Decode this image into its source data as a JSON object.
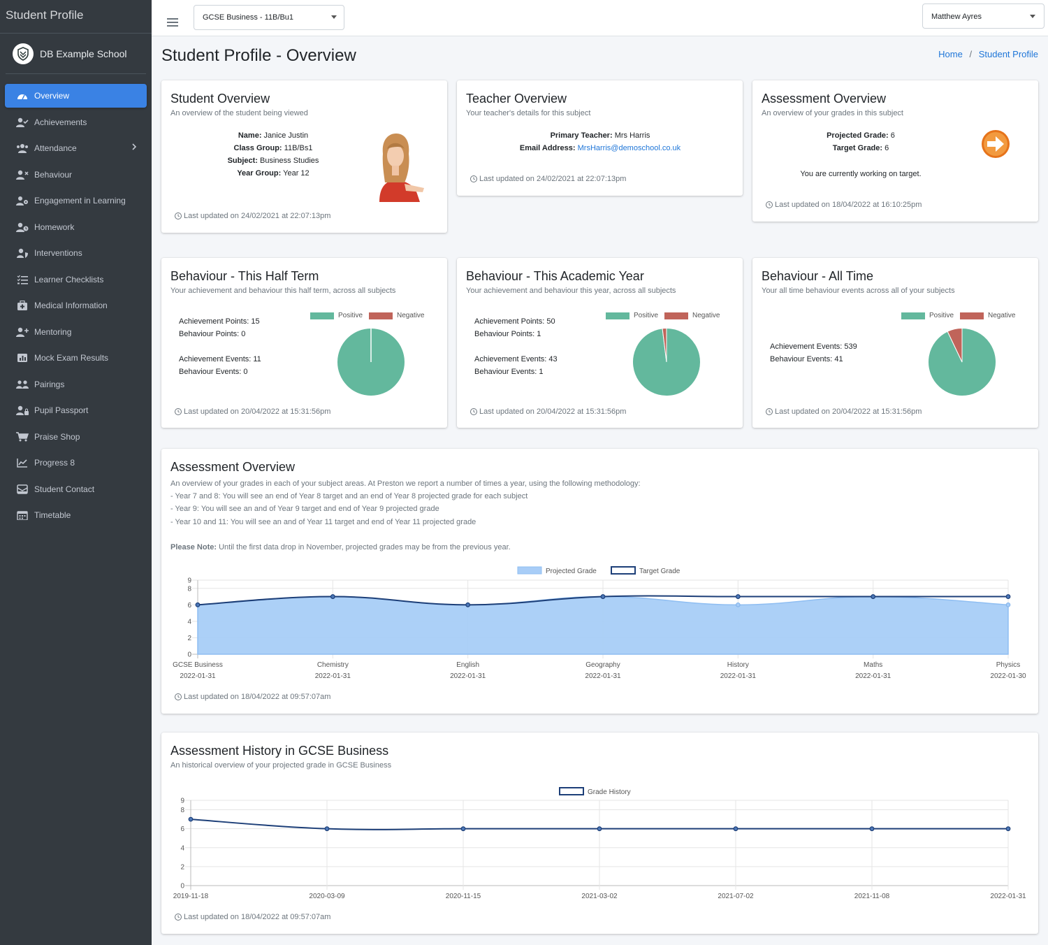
{
  "sidebar": {
    "brand": "Student Profile",
    "school": "DB Example School",
    "items": [
      {
        "label": "Overview",
        "icon": "dashboard-icon"
      },
      {
        "label": "Achievements",
        "icon": "user-check-icon"
      },
      {
        "label": "Attendance",
        "icon": "users-icon"
      },
      {
        "label": "Behaviour",
        "icon": "user-times-icon"
      },
      {
        "label": "Engagement in Learning",
        "icon": "users-cog-icon"
      },
      {
        "label": "Homework",
        "icon": "user-clock-icon"
      },
      {
        "label": "Interventions",
        "icon": "user-shield-icon"
      },
      {
        "label": "Learner Checklists",
        "icon": "list-check-icon"
      },
      {
        "label": "Medical Information",
        "icon": "medkit-icon"
      },
      {
        "label": "Mentoring",
        "icon": "user-plus-icon"
      },
      {
        "label": "Mock Exam Results",
        "icon": "bar-chart-icon"
      },
      {
        "label": "Pairings",
        "icon": "people-pair-icon"
      },
      {
        "label": "Pupil Passport",
        "icon": "user-lock-icon"
      },
      {
        "label": "Praise Shop",
        "icon": "cart-icon"
      },
      {
        "label": "Progress 8",
        "icon": "line-chart-icon"
      },
      {
        "label": "Student Contact",
        "icon": "mail-bulk-icon"
      },
      {
        "label": "Timetable",
        "icon": "calendar-icon"
      }
    ]
  },
  "topbar": {
    "class_select": "GCSE Business - 11B/Bu1",
    "user_select": "Matthew Ayres"
  },
  "header": {
    "title": "Student Profile - Overview",
    "breadcrumb": [
      "Home",
      "Student Profile"
    ],
    "breadcrumb_sep": "/"
  },
  "student": {
    "title": "Student Overview",
    "subtitle": "An overview of the student being viewed",
    "name_label": "Name:",
    "name": "Janice Justin",
    "class_label": "Class Group:",
    "class": "11B/Bs1",
    "subject_label": "Subject:",
    "subject": "Business Studies",
    "year_label": "Year Group:",
    "year": "Year 12",
    "updated": "Last updated on 24/02/2021 at 22:07:13pm"
  },
  "teacher": {
    "title": "Teacher Overview",
    "subtitle": "Your teacher's details for this subject",
    "primary_label": "Primary Teacher:",
    "primary": "Mrs Harris",
    "email_label": "Email Address:",
    "email": "MrsHarris@demoschool.co.uk",
    "updated": "Last updated on 24/02/2021 at 22:07:13pm"
  },
  "assessment": {
    "title": "Assessment Overview",
    "subtitle": "An overview of your grades in this subject",
    "projected_label": "Projected Grade:",
    "projected": "6",
    "target_label": "Target Grade:",
    "target": "6",
    "status": "You are currently working on target.",
    "updated": "Last updated on 18/04/2022 at 16:10:25pm"
  },
  "behaviour_cards": [
    {
      "title": "Behaviour - This Half Term",
      "subtitle": "Your achievement and behaviour this half term, across all subjects",
      "lines": [
        "Achievement Points: 15",
        "Behaviour Points: 0",
        "",
        "Achievement Events: 11",
        "Behaviour Events: 0"
      ],
      "positive": 15,
      "negative": 0,
      "updated": "Last updated on 20/04/2022 at 15:31:56pm"
    },
    {
      "title": "Behaviour - This Academic Year",
      "subtitle": "Your achievement and behaviour this year, across all subjects",
      "lines": [
        "Achievement Points: 50",
        "Behaviour Points: 1",
        "",
        "Achievement Events: 43",
        "Behaviour Events: 1"
      ],
      "positive": 50,
      "negative": 1,
      "updated": "Last updated on 20/04/2022 at 15:31:56pm"
    },
    {
      "title": "Behaviour - All Time",
      "subtitle": "Your all time behaviour events across all of your subjects",
      "lines": [
        "Achievement Events: 539",
        "Behaviour Events: 41"
      ],
      "positive": 539,
      "negative": 41,
      "updated": "Last updated on 20/04/2022 at 15:31:56pm"
    }
  ],
  "legend": {
    "positive": "Positive",
    "negative": "Negative"
  },
  "colors": {
    "positive": "#63b89d",
    "negative": "#c0645a",
    "projected": "#a8cdf7",
    "target": "#1d3f78",
    "accent": "#3a82e4"
  },
  "assessment_overview": {
    "title": "Assessment Overview",
    "lines": [
      "An overview of your grades in each of your subject areas. At Preston we report a number of times a year, using the following methodology:",
      "- Year 7 and 8: You will see an end of Year 8 target and an end of Year 8 projected grade for each subject",
      "- Year 9: You will see an and of Year 9 target and end of Year 9 projected grade",
      "- Year 10 and 11: You will see an and of Year 11 target and end of Year 11 projected grade"
    ],
    "note_label": "Please Note:",
    "note": "Until the first data drop in November, projected grades may be from the previous year.",
    "updated": "Last updated on 18/04/2022 at 09:57:07am"
  },
  "assessment_history": {
    "title": "Assessment History in GCSE Business",
    "subtitle": "An historical overview of your projected grade in GCSE Business",
    "updated": "Last updated on 18/04/2022 at 09:57:07am"
  },
  "chart_data": [
    {
      "type": "area",
      "series": [
        {
          "name": "Projected Grade",
          "values": [
            6,
            7,
            6,
            7,
            6,
            7,
            6
          ]
        },
        {
          "name": "Target Grade",
          "values": [
            6,
            7,
            6,
            7,
            7,
            7,
            7
          ]
        }
      ],
      "categories": [
        [
          "GCSE Business",
          "2022-01-31"
        ],
        [
          "Chemistry",
          "2022-01-31"
        ],
        [
          "English",
          "2022-01-31"
        ],
        [
          "Geography",
          "2022-01-31"
        ],
        [
          "History",
          "2022-01-31"
        ],
        [
          "Maths",
          "2022-01-31"
        ],
        [
          "Physics",
          "2022-01-30"
        ]
      ],
      "yticks": [
        0,
        2,
        4,
        6,
        8,
        9
      ],
      "ylim": [
        0,
        9
      ],
      "legend": "top"
    },
    {
      "type": "line",
      "series": [
        {
          "name": "Grade History",
          "values": [
            7,
            6,
            6,
            6,
            6,
            6,
            6
          ]
        }
      ],
      "categories": [
        "2019-11-18",
        "2020-03-09",
        "2020-11-15",
        "2021-03-02",
        "2021-07-02",
        "2021-11-08",
        "2022-01-31"
      ],
      "yticks": [
        0,
        2,
        4,
        6,
        8,
        9
      ],
      "ylim": [
        0,
        9
      ],
      "legend": "top"
    }
  ]
}
